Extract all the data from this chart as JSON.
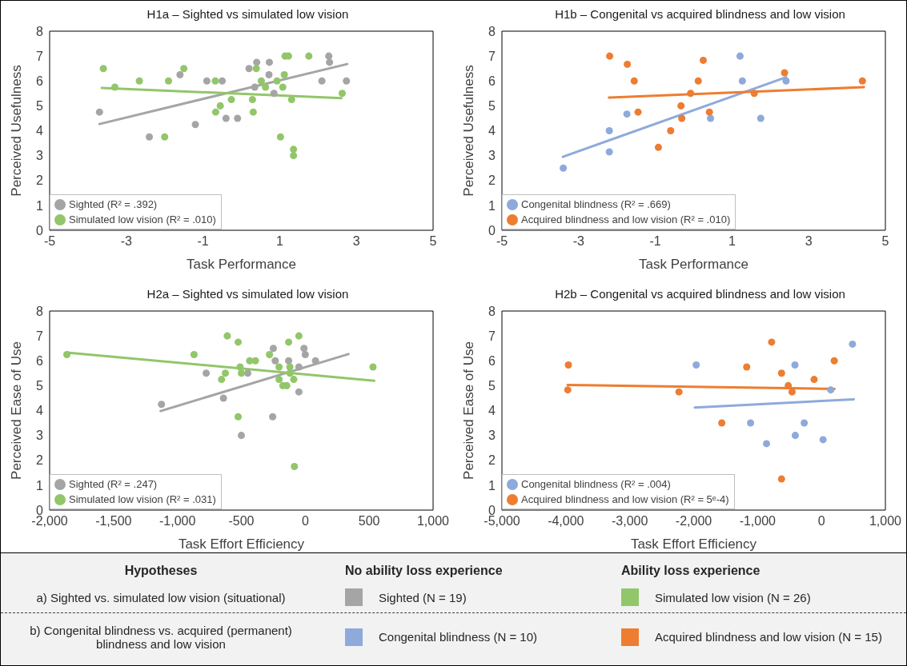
{
  "chart_data": [
    {
      "type": "scatter",
      "title": "H1a – Sighted vs simulated low vision",
      "xlabel": "Task Performance",
      "ylabel": "Perceived Usefulness",
      "xlim": [
        -5,
        5
      ],
      "xticks": [
        -5,
        -3,
        -1,
        1,
        3,
        5
      ],
      "ylim": [
        0,
        8
      ],
      "yticks": [
        0,
        1,
        2,
        3,
        4,
        5,
        6,
        7,
        8
      ],
      "legend": "bottom left",
      "series": [
        {
          "name": "Sighted (R² = .392)",
          "color": "#a5a5a5",
          "marker": "circle",
          "x": [
            -3.7,
            -2.4,
            -1.6,
            -1.2,
            -0.9,
            -0.5,
            -0.4,
            -0.1,
            0.2,
            0.4,
            0.35,
            0.73,
            0.72,
            0.85,
            2.1,
            2.28,
            2.3,
            2.74
          ],
          "values": [
            4.75,
            3.75,
            6.25,
            4.25,
            6,
            6,
            4.5,
            4.5,
            6.5,
            6.75,
            5.75,
            6.75,
            6.25,
            5.5,
            6,
            7,
            6.75,
            6
          ]
        },
        {
          "name": "Simulated low vision (R² = .010)",
          "color": "#92c66a",
          "marker": "circle",
          "x": [
            -3.6,
            -3.3,
            -2.66,
            -1.9,
            -1.5,
            -2,
            -0.68,
            -0.67,
            -0.55,
            -0.26,
            0.29,
            0.31,
            0.39,
            0.52,
            0.63,
            0.93,
            1.08,
            1.12,
            1.14,
            1.23,
            1.76,
            1.31,
            1.02,
            1.36,
            1.36,
            2.63
          ],
          "values": [
            6.5,
            5.75,
            6,
            6,
            6.5,
            3.75,
            6,
            4.75,
            5,
            5.25,
            5.25,
            4.75,
            6.5,
            6,
            5.75,
            6,
            5.75,
            6.25,
            7,
            7,
            7,
            5.25,
            3.75,
            3.25,
            3,
            5.5
          ]
        },
        {
          "type": "line",
          "color": "#a5a5a5",
          "marker": "none",
          "x": [
            -3.7,
            2.76
          ],
          "values": [
            4.27,
            6.68
          ]
        },
        {
          "type": "line",
          "color": "#92c66a",
          "marker": "none",
          "x": [
            -3.64,
            2.61
          ],
          "values": [
            5.72,
            5.31
          ]
        }
      ]
    },
    {
      "type": "scatter",
      "title": "H1b – Congenital vs acquired blindness and low vision",
      "xlabel": "Task Performance",
      "ylabel": "Perceived Usefulness",
      "xlim": [
        -5,
        5
      ],
      "xticks": [
        -5,
        -3,
        -1,
        1,
        3,
        5
      ],
      "ylim": [
        0,
        8
      ],
      "yticks": [
        0,
        1,
        2,
        3,
        4,
        5,
        6,
        7,
        8
      ],
      "legend": "bottom left",
      "series": [
        {
          "name": "Congenital blindness (R² = .669)",
          "color": "#8eaadb",
          "marker": "circle",
          "x": [
            -3.4,
            -2.2,
            -2.2,
            -1.74,
            0.44,
            1.21,
            1.27,
            1.75,
            2.41
          ],
          "values": [
            2.5,
            3.15,
            4,
            4.67,
            4.5,
            7,
            6,
            4.5,
            6
          ]
        },
        {
          "name": "Acquired blindness and low vision (R² = .010)",
          "color": "#ed7d31",
          "marker": "circle",
          "x": [
            -2.19,
            -1.73,
            -1.55,
            -1.45,
            -0.92,
            -0.6,
            -0.33,
            -0.31,
            -0.08,
            0.12,
            0.25,
            0.41,
            1.58,
            2.37,
            4.4
          ],
          "values": [
            7,
            6.67,
            6,
            4.75,
            3.33,
            4,
            5,
            4.5,
            5.5,
            6,
            6.83,
            4.75,
            5.5,
            6.33,
            6
          ]
        },
        {
          "type": "line",
          "color": "#8eaadb",
          "marker": "none",
          "x": [
            -3.41,
            2.41
          ],
          "values": [
            2.95,
            6.15
          ]
        },
        {
          "type": "line",
          "color": "#ed7d31",
          "marker": "none",
          "x": [
            -2.21,
            4.44
          ],
          "values": [
            5.33,
            5.75
          ]
        }
      ]
    },
    {
      "type": "scatter",
      "title": "H2a – Sighted vs simulated low vision",
      "xlabel": "Task Effort Efficiency",
      "ylabel": "Perceived Ease of Use",
      "xlim": [
        -2000,
        1000
      ],
      "xticks": [
        {
          "value": -2000,
          "label": "-2,000"
        },
        {
          "value": -1500,
          "label": "-1,500"
        },
        {
          "value": -1000,
          "label": "-1,000"
        },
        -500,
        0,
        500,
        {
          "value": 1000,
          "label": "1,000"
        }
      ],
      "ylim": [
        0,
        8
      ],
      "yticks": [
        0,
        1,
        2,
        3,
        4,
        5,
        6,
        7,
        8
      ],
      "legend": "bottom left",
      "series": [
        {
          "name": "Sighted (R² = .247)",
          "color": "#a5a5a5",
          "marker": "circle",
          "x": [
            -1125,
            -775,
            -640,
            -500,
            -450,
            -250,
            -235,
            -255,
            -130,
            -50,
            -50,
            -10,
            0,
            80
          ],
          "values": [
            4.25,
            5.5,
            4.5,
            3,
            5.5,
            6.5,
            6,
            3.75,
            6,
            5.75,
            4.75,
            6.5,
            6.25,
            6
          ]
        },
        {
          "name": "Simulated low vision (R² = .031)",
          "color": "#92c66a",
          "marker": "circle",
          "x": [
            -1865,
            -870,
            -610,
            -525,
            -655,
            -625,
            -510,
            -500,
            -525,
            -435,
            -390,
            -280,
            -205,
            -205,
            -175,
            -145,
            -130,
            -120,
            -120,
            -90,
            -50,
            -85,
            530
          ],
          "values": [
            6.25,
            6.25,
            7,
            6.75,
            5.25,
            5.5,
            5.75,
            5.5,
            3.75,
            6,
            6,
            6.25,
            5.75,
            5.25,
            5,
            5,
            6.75,
            5.75,
            5.5,
            5.25,
            7,
            1.75,
            5.75
          ]
        },
        {
          "type": "line",
          "color": "#a5a5a5",
          "marker": "none",
          "x": [
            -1132,
            338
          ],
          "values": [
            3.98,
            6.27
          ]
        },
        {
          "type": "line",
          "color": "#92c66a",
          "marker": "none",
          "x": [
            -1865,
            540
          ],
          "values": [
            6.33,
            5.2
          ]
        }
      ]
    },
    {
      "type": "scatter",
      "title": "H2b – Congenital vs acquired blindness and low vision",
      "xlabel": "Task Effort Efficiency",
      "ylabel": "Perceived Ease of Use",
      "xlim": [
        -5000,
        1000
      ],
      "xticks": [
        {
          "value": -5000,
          "label": "-5,000"
        },
        {
          "value": -4000,
          "label": "-4,000"
        },
        {
          "value": -3000,
          "label": "-3,000"
        },
        {
          "value": -2000,
          "label": "-2,000"
        },
        {
          "value": -1000,
          "label": "-1,000"
        },
        0,
        {
          "value": 1000,
          "label": "1,000"
        }
      ],
      "ylim": [
        0,
        8
      ],
      "yticks": [
        0,
        1,
        2,
        3,
        4,
        5,
        6,
        7,
        8
      ],
      "legend": "bottom left",
      "series": [
        {
          "name": "Congenital blindness (R² = .004)",
          "color": "#8eaadb",
          "marker": "circle",
          "x": [
            -1960,
            -1110,
            -860,
            -415,
            -410,
            -270,
            25,
            145,
            485
          ],
          "values": [
            5.83,
            3.5,
            2.67,
            5.83,
            3,
            3.5,
            2.83,
            4.83,
            6.67
          ]
        },
        {
          "name": "Acquired blindness and low vision (R² = 5ᵉ-4)",
          "color": "#ed7d31",
          "marker": "circle",
          "x": [
            -3960,
            -3970,
            -2230,
            -1560,
            -1170,
            -780,
            -625,
            -625,
            -520,
            -460,
            -115,
            200
          ],
          "values": [
            5.83,
            4.83,
            4.75,
            3.5,
            5.75,
            6.75,
            5.5,
            1.25,
            5,
            4.75,
            5.25,
            6
          ]
        },
        {
          "type": "line",
          "color": "#8eaadb",
          "marker": "none",
          "x": [
            -1983,
            506
          ],
          "values": [
            4.12,
            4.45
          ]
        },
        {
          "type": "line",
          "color": "#ed7d31",
          "marker": "none",
          "x": [
            -3972,
            204
          ],
          "values": [
            5.03,
            4.87
          ]
        }
      ]
    },
    {
      "type": "other",
      "annotations": [
        "Hypotheses",
        "No ability loss experience",
        "Ability loss experience",
        "a) Sighted vs. simulated low vision (situational)",
        "Sighted (N = 19)",
        "Simulated low vision (N = 26)",
        "b) Congenital blindness vs. acquired (permanent) blindness and low vision",
        "Congenital blindness (N = 10)",
        "Acquired blindness and low vision (N = 15)"
      ]
    }
  ]
}
